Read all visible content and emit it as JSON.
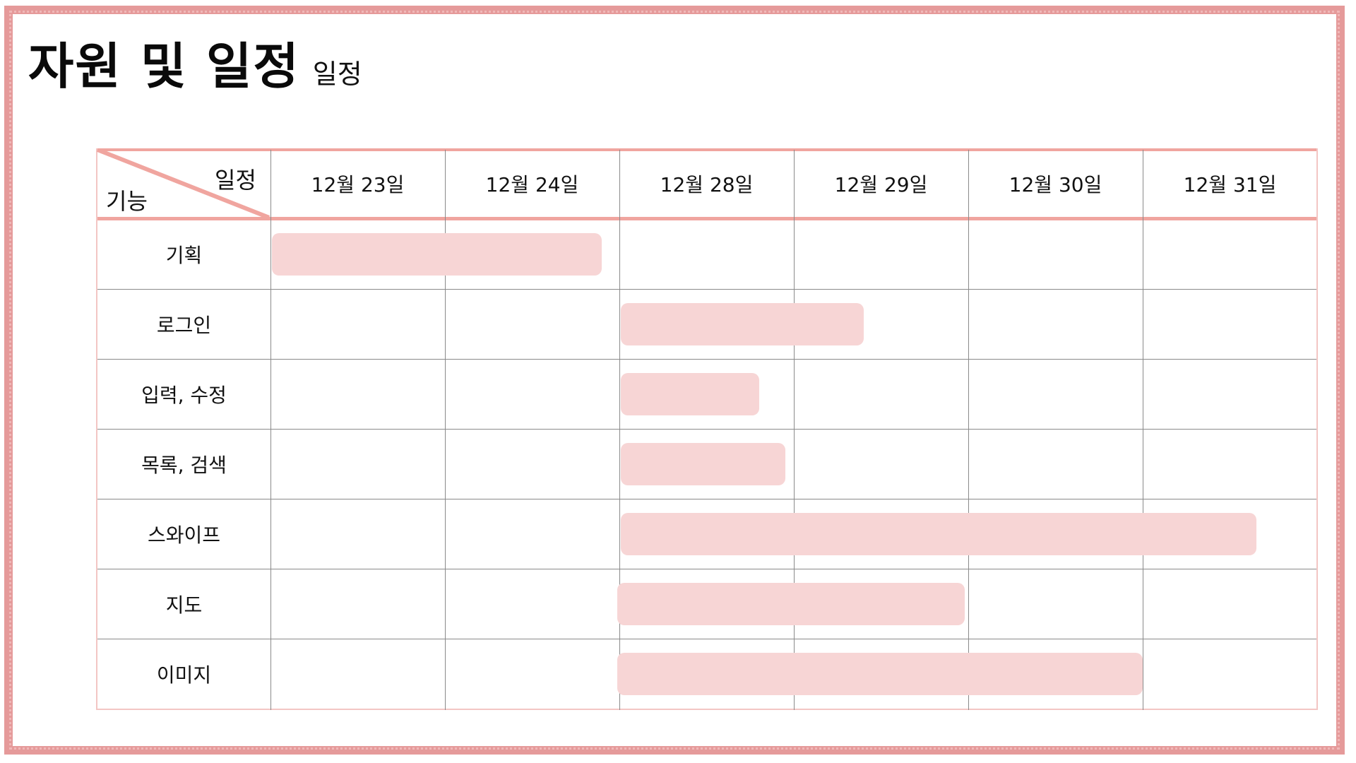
{
  "title": {
    "main": "자원 및 일정",
    "sub": "일정"
  },
  "table": {
    "corner": {
      "column_header": "일정",
      "row_header": "기능"
    },
    "dates": [
      "12월 23일",
      "12월 24일",
      "12월 28일",
      "12월 29일",
      "12월 30일",
      "12월 31일"
    ],
    "features": [
      "기획",
      "로그인",
      "입력, 수정",
      "목록, 검색",
      "스와이프",
      "지도",
      "이미지"
    ]
  },
  "chart_data": {
    "type": "gantt",
    "categories": [
      "12월 23일",
      "12월 24일",
      "12월 28일",
      "12월 29일",
      "12월 30일",
      "12월 31일"
    ],
    "tasks": [
      {
        "name": "기획",
        "start": 0.0,
        "end": 1.9
      },
      {
        "name": "로그인",
        "start": 2.0,
        "end": 3.4
      },
      {
        "name": "입력, 수정",
        "start": 2.0,
        "end": 2.8
      },
      {
        "name": "목록, 검색",
        "start": 2.0,
        "end": 2.95
      },
      {
        "name": "스와이프",
        "start": 2.0,
        "end": 5.65
      },
      {
        "name": "지도",
        "start": 1.98,
        "end": 3.98
      },
      {
        "name": "이미지",
        "start": 1.98,
        "end": 5.0
      }
    ],
    "bar_color": "#f7d5d5",
    "accent_color": "#f0a59f"
  }
}
